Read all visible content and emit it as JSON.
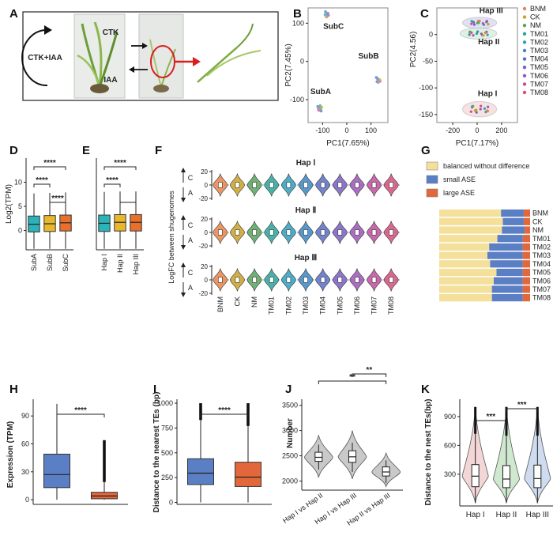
{
  "figure": {
    "panel_letters": [
      "A",
      "B",
      "C",
      "D",
      "E",
      "F",
      "G",
      "H",
      "I",
      "J",
      "K"
    ]
  },
  "panel_a": {
    "labels": {
      "cycle": "CTK+IAA",
      "forward": "CTK",
      "backward": "IAA"
    }
  },
  "colors": {
    "teal": "#2ab3b8",
    "gold": "#e9b72e",
    "orange": "#e86f2c",
    "blue": "#5b7fc4",
    "red_orange": "#e2683c",
    "beige": "#f4e09a",
    "violin_fill": "#c9c9c9",
    "pink_fill": "#f3d6d6",
    "green_fill": "#cfe8cf",
    "blue_fill": "#cfdcef"
  },
  "chart_data": [
    {
      "panel": "B",
      "type": "scatter",
      "xlabel": "PC1(7.65%)",
      "ylabel": "PC2(7.45%)",
      "xlim": [
        -160,
        170
      ],
      "ylim": [
        -160,
        140
      ],
      "xticks": [
        -100,
        0,
        100
      ],
      "yticks": [
        -100,
        0,
        100
      ],
      "annotations": [
        "SubC",
        "SubB",
        "SubA"
      ],
      "series": [
        {
          "name": "SubC",
          "points": [
            [
              -88,
              130
            ],
            [
              -82,
              124
            ],
            [
              -86,
              120
            ],
            [
              -78,
              126
            ],
            [
              -84,
              116
            ],
            [
              -90,
              122
            ],
            [
              -80,
              119
            ],
            [
              -76,
              121
            ]
          ]
        },
        {
          "name": "SubB",
          "points": [
            [
              122,
              -42
            ],
            [
              128,
              -46
            ],
            [
              132,
              -50
            ],
            [
              125,
              -53
            ],
            [
              136,
              -48
            ],
            [
              130,
              -55
            ],
            [
              138,
              -52
            ],
            [
              127,
              -45
            ]
          ]
        },
        {
          "name": "SubA",
          "points": [
            [
              -120,
              -118
            ],
            [
              -114,
              -122
            ],
            [
              -108,
              -126
            ],
            [
              -116,
              -128
            ],
            [
              -104,
              -120
            ],
            [
              -110,
              -116
            ],
            [
              -118,
              -124
            ],
            [
              -106,
              -130
            ]
          ]
        }
      ]
    },
    {
      "panel": "C",
      "type": "scatter",
      "xlabel": "PC1(7.17%)",
      "ylabel": "PC2(4.56)",
      "xlim": [
        -330,
        330
      ],
      "ylim": [
        -165,
        50
      ],
      "xticks": [
        -200,
        0,
        200
      ],
      "yticks": [
        -150,
        -100,
        -50,
        0
      ],
      "annotations": [
        "Hap III",
        "Hap II",
        "Hap I"
      ],
      "legend": [
        "BNM",
        "CK",
        "NM",
        "TM01",
        "TM02",
        "TM03",
        "TM04",
        "TM05",
        "TM06",
        "TM07",
        "TM08"
      ],
      "legend_colors": [
        "#e6844a",
        "#c9a227",
        "#58a55c",
        "#2aa39a",
        "#2f9fc0",
        "#3c86c6",
        "#5a6fc4",
        "#7a5fc0",
        "#9c55b8",
        "#c04f9e",
        "#d44f7c"
      ],
      "clusters": [
        {
          "name": "Hap III",
          "center": [
            20,
            22
          ],
          "spread": [
            140,
            6
          ]
        },
        {
          "name": "Hap II",
          "center": [
            10,
            2
          ],
          "spread": [
            150,
            6
          ]
        },
        {
          "name": "Hap I",
          "center": [
            20,
            -140
          ],
          "spread": [
            140,
            10
          ]
        }
      ]
    },
    {
      "panel": "D",
      "type": "box",
      "ylabel": "Log2(TPM)",
      "ylim": [
        -4,
        15
      ],
      "yticks": [
        0,
        5,
        10
      ],
      "categories": [
        "SubA",
        "SubB",
        "SubC"
      ],
      "boxes": [
        {
          "q1": -0.3,
          "median": 1.3,
          "q3": 3.0,
          "low": -3.8,
          "high": 7.7
        },
        {
          "q1": -0.2,
          "median": 1.4,
          "q3": 3.1,
          "low": -3.8,
          "high": 7.8
        },
        {
          "q1": -0.1,
          "median": 1.6,
          "q3": 3.2,
          "low": -3.8,
          "high": 7.9
        }
      ],
      "significance": [
        {
          "pair": [
            0,
            2
          ],
          "label": "****"
        },
        {
          "pair": [
            0,
            1
          ],
          "label": "****"
        },
        {
          "pair": [
            1,
            2
          ],
          "label": "****"
        }
      ]
    },
    {
      "panel": "E",
      "type": "box",
      "ylim": [
        -4,
        15
      ],
      "categories": [
        "Hap I",
        "Hap II",
        "Hap III"
      ],
      "boxes": [
        {
          "q1": -0.2,
          "median": 1.5,
          "q3": 3.2,
          "low": -3.8,
          "high": 8.0
        },
        {
          "q1": -0.1,
          "median": 1.7,
          "q3": 3.3,
          "low": -3.8,
          "high": 8.1
        },
        {
          "q1": -0.1,
          "median": 1.7,
          "q3": 3.3,
          "low": -3.8,
          "high": 8.1
        }
      ],
      "significance": [
        {
          "pair": [
            0,
            2
          ],
          "label": "****"
        },
        {
          "pair": [
            0,
            1
          ],
          "label": "****"
        },
        {
          "pair": [
            1,
            2
          ],
          "label": ""
        }
      ]
    },
    {
      "panel": "F",
      "type": "violin",
      "ylabel": "LogFC between shugenomes",
      "ylim": [
        -20,
        20
      ],
      "yticks": [
        20,
        0,
        -20
      ],
      "side_labels": {
        "up": "C",
        "down": "A"
      },
      "categories": [
        "BNM",
        "CK",
        "NM",
        "TM01",
        "TM02",
        "TM03",
        "TM04",
        "TM05",
        "TM06",
        "TM07",
        "TM08"
      ],
      "colors": [
        "#e6844a",
        "#c9a227",
        "#58a55c",
        "#2aa39a",
        "#2f9fc0",
        "#3c86c6",
        "#5a6fc4",
        "#7a5fc0",
        "#9c55b8",
        "#c04f9e",
        "#d44f7c"
      ],
      "rows": [
        {
          "title": "Hap Ⅰ"
        },
        {
          "title": "Hap Ⅱ"
        },
        {
          "title": "Hap Ⅲ"
        }
      ]
    },
    {
      "panel": "G",
      "type": "stacked-bar",
      "legend": [
        "balanced without difference",
        "small  ASE",
        "large ASE"
      ],
      "categories": [
        "BNM",
        "CK",
        "NM",
        "TM01",
        "TM02",
        "TM03",
        "TM04",
        "TM05",
        "TM06",
        "TM07",
        "TM08"
      ],
      "series": [
        {
          "name": "balanced without difference",
          "values": [
            0.68,
            0.7,
            0.69,
            0.64,
            0.55,
            0.53,
            0.56,
            0.63,
            0.6,
            0.58,
            0.58
          ]
        },
        {
          "name": "small  ASE",
          "values": [
            0.25,
            0.23,
            0.25,
            0.28,
            0.37,
            0.39,
            0.36,
            0.29,
            0.32,
            0.34,
            0.34
          ]
        },
        {
          "name": "large ASE",
          "values": [
            0.07,
            0.07,
            0.06,
            0.08,
            0.08,
            0.08,
            0.08,
            0.08,
            0.08,
            0.08,
            0.08
          ]
        }
      ]
    },
    {
      "panel": "H",
      "type": "box",
      "ylabel": "Expression (TPM)",
      "ylim": [
        -5,
        108
      ],
      "yticks": [
        0,
        30,
        60,
        90
      ],
      "categories": [
        "",
        ""
      ],
      "boxes": [
        {
          "q1": 13,
          "median": 27,
          "q3": 49,
          "low": 0,
          "high": 103
        },
        {
          "q1": 1,
          "median": 4,
          "q3": 8,
          "low": 0,
          "high": 19,
          "outliers_to": 64
        }
      ],
      "significance": [
        {
          "pair": [
            0,
            1
          ],
          "label": "****"
        }
      ]
    },
    {
      "panel": "I",
      "type": "box",
      "ylabel": "Distance to the nearest TEs (bp)",
      "ylim": [
        -20,
        1040
      ],
      "yticks": [
        0,
        250,
        500,
        750,
        1000
      ],
      "categories": [
        "",
        ""
      ],
      "boxes": [
        {
          "q1": 180,
          "median": 295,
          "q3": 440,
          "low": 0,
          "high": 830,
          "outliers_to": 1000
        },
        {
          "q1": 160,
          "median": 255,
          "q3": 405,
          "low": 0,
          "high": 770,
          "outliers_to": 1000
        }
      ],
      "significance": [
        {
          "pair": [
            0,
            1
          ],
          "label": "****"
        }
      ]
    },
    {
      "panel": "J",
      "type": "violin",
      "ylabel": "Number",
      "ylim": [
        1820,
        3620
      ],
      "yticks": [
        2000,
        2500,
        3000,
        3500
      ],
      "categories": [
        "Hap I vs Hap II",
        "Hap I vs Hap III",
        "Hap II vs Hap III"
      ],
      "boxes": [
        {
          "q1": 2390,
          "median": 2470,
          "q3": 2570,
          "low": 2230,
          "high": 2720,
          "min": 2070,
          "max": 2910
        },
        {
          "q1": 2370,
          "median": 2480,
          "q3": 2600,
          "low": 2180,
          "high": 2760,
          "min": 2040,
          "max": 3000
        },
        {
          "q1": 2100,
          "median": 2180,
          "q3": 2280,
          "low": 1960,
          "high": 2410,
          "min": 1890,
          "max": 2560
        }
      ],
      "significance": [
        {
          "pair": [
            0,
            2
          ],
          "label": "**"
        },
        {
          "pair": [
            1,
            2
          ],
          "label": "**"
        }
      ]
    },
    {
      "panel": "K",
      "type": "violin",
      "ylabel": "Distance to the nest TEs(bp)",
      "ylim": [
        -30,
        1080
      ],
      "yticks": [
        300,
        600,
        900
      ],
      "categories": [
        "Hap I",
        "Hap II",
        "Hap III"
      ],
      "boxes": [
        {
          "q1": 170,
          "median": 280,
          "q3": 400,
          "low": 0,
          "high": 720,
          "max": 1000
        },
        {
          "q1": 160,
          "median": 250,
          "q3": 390,
          "low": 0,
          "high": 700,
          "max": 1000
        },
        {
          "q1": 160,
          "median": 255,
          "q3": 395,
          "low": 0,
          "high": 700,
          "max": 1000
        }
      ],
      "significance": [
        {
          "pair": [
            0,
            1
          ],
          "label": "***"
        },
        {
          "pair": [
            1,
            2
          ],
          "label": "***"
        }
      ]
    }
  ]
}
